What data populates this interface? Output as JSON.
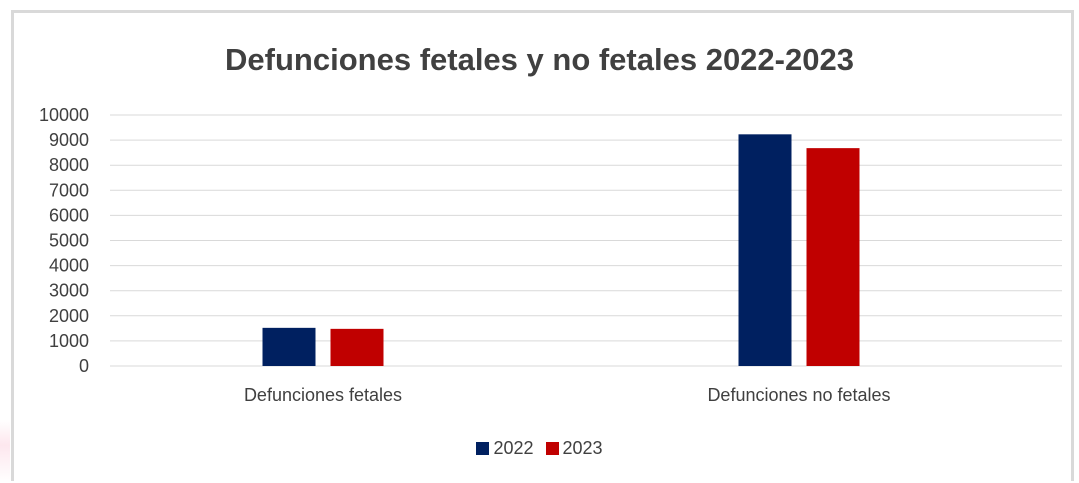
{
  "chart_data": {
    "type": "bar",
    "title": "Defunciones fetales y no fetales 2022-2023",
    "categories": [
      "Defunciones fetales",
      "Defunciones no fetales"
    ],
    "series": [
      {
        "name": "2022",
        "color": "#002060",
        "values": [
          1520,
          9230
        ]
      },
      {
        "name": "2023",
        "color": "#c00000",
        "values": [
          1480,
          8680
        ]
      }
    ],
    "yticks": [
      "0",
      "1000",
      "2000",
      "3000",
      "4000",
      "5000",
      "6000",
      "7000",
      "8000",
      "9000",
      "10000"
    ],
    "ylim": [
      0,
      10000
    ],
    "grid": true,
    "legend_position": "bottom"
  }
}
